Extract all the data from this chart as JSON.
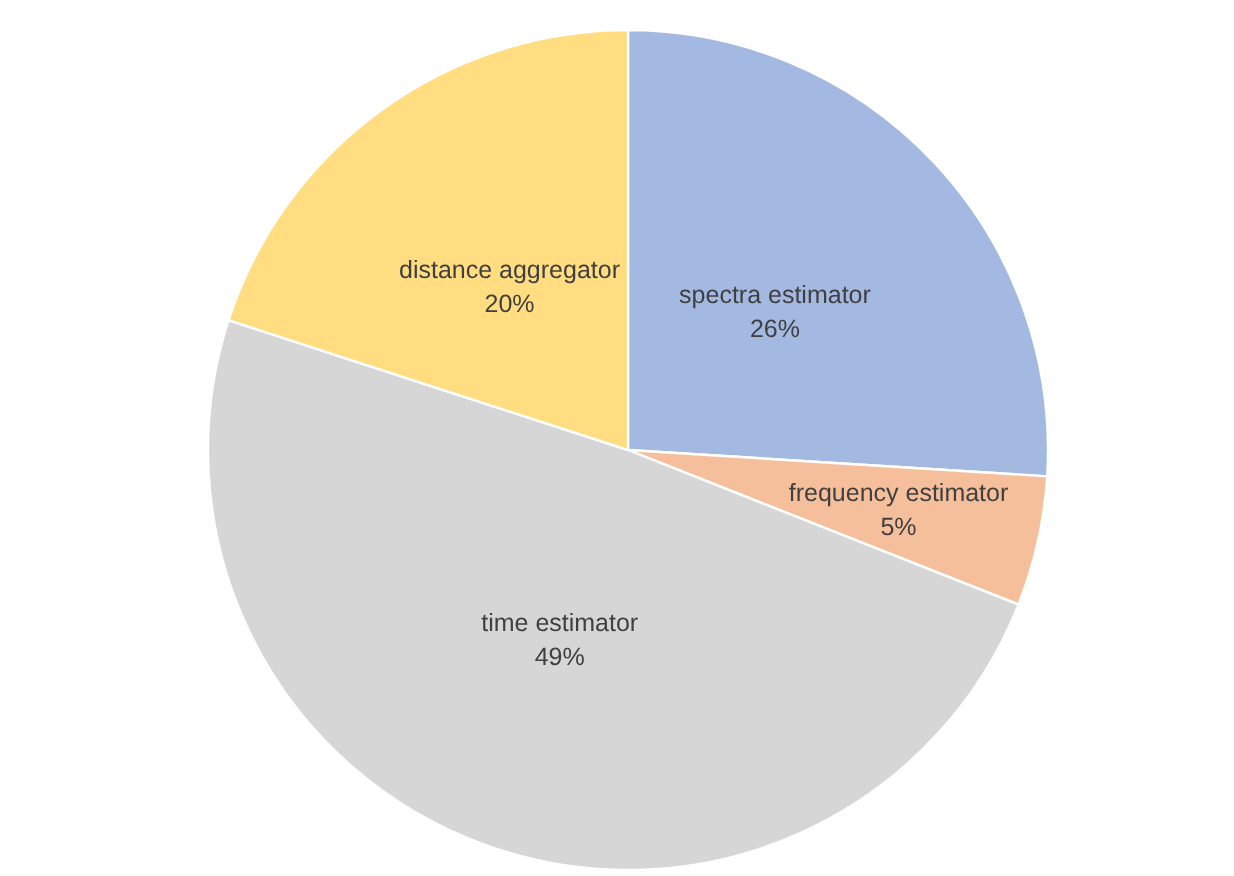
{
  "chart_data": {
    "type": "pie",
    "categories": [
      "spectra estimator",
      "frequency estimator",
      "time estimator",
      "distance aggregator"
    ],
    "values": [
      26,
      5,
      49,
      20
    ],
    "colors": [
      "#a3b9e2",
      "#f6bf9c",
      "#d6d6d6",
      "#ffdd80"
    ],
    "value_labels": [
      "26%",
      "5%",
      "49%",
      "20%"
    ]
  }
}
